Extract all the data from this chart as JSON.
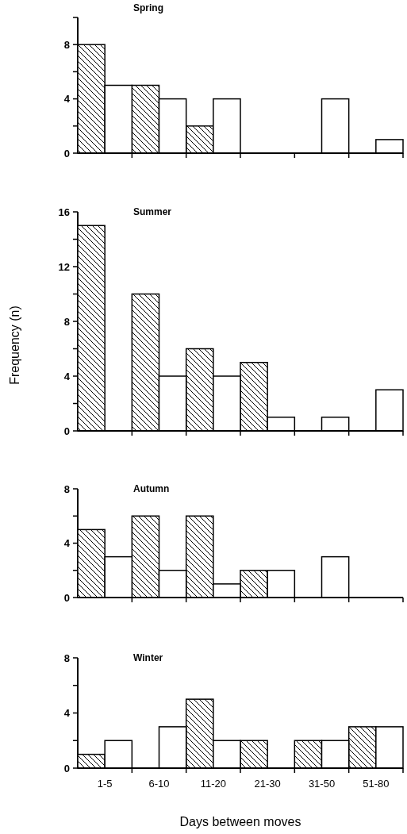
{
  "chart_data": [
    {
      "type": "bar",
      "title": "Spring",
      "categories": [
        null,
        null,
        null,
        null,
        null,
        null
      ],
      "series": [
        {
          "color": "#000000",
          "values": [
            8,
            5,
            2,
            0,
            0,
            0
          ]
        },
        {
          "color": "#ffffff",
          "values": [
            5,
            4,
            4,
            0,
            4,
            1
          ]
        }
      ],
      "ylim": [
        0,
        10
      ],
      "yticks": [
        0,
        {
          "value": 2,
          "label": null
        },
        4,
        {
          "value": 6,
          "label": null
        },
        8,
        {
          "value": 10,
          "label": null
        }
      ]
    },
    {
      "type": "bar",
      "title": "Summer",
      "ylabel": "Frequency (n)",
      "categories": [
        null,
        null,
        null,
        null,
        null,
        null
      ],
      "series": [
        {
          "color": "#000000",
          "values": [
            15,
            10,
            6,
            5,
            0,
            0
          ]
        },
        {
          "color": "#ffffff",
          "values": [
            0,
            4,
            4,
            1,
            1,
            3
          ]
        }
      ],
      "ylim": [
        0,
        16
      ],
      "yticks": [
        0,
        {
          "value": 2,
          "label": null
        },
        4,
        {
          "value": 6,
          "label": null
        },
        8,
        {
          "value": 10,
          "label": null
        },
        12,
        {
          "value": 14,
          "label": null
        },
        16
      ]
    },
    {
      "type": "bar",
      "title": "Autumn",
      "categories": [
        null,
        null,
        null,
        null,
        null,
        null
      ],
      "series": [
        {
          "color": "#000000",
          "values": [
            5,
            6,
            6,
            2,
            0,
            0
          ]
        },
        {
          "color": "#ffffff",
          "values": [
            3,
            2,
            1,
            2,
            3,
            0
          ]
        }
      ],
      "ylim": [
        0,
        8
      ],
      "yticks": [
        0,
        {
          "value": 2,
          "label": null
        },
        4,
        {
          "value": 6,
          "label": null
        },
        8
      ]
    },
    {
      "type": "bar",
      "title": "Winter",
      "xlabel": "Days between moves",
      "categories": [
        "1-5",
        "6-10",
        "11-20",
        "21-30",
        "31-50",
        "51-80"
      ],
      "series": [
        {
          "color": "#000000",
          "values": [
            1,
            0,
            5,
            2,
            2,
            3
          ]
        },
        {
          "color": "#ffffff",
          "values": [
            2,
            3,
            2,
            0,
            2,
            3
          ]
        }
      ],
      "ylim": [
        0,
        8
      ],
      "yticks": [
        0,
        {
          "value": 2,
          "label": null
        },
        4,
        {
          "value": 6,
          "label": null
        },
        8
      ]
    }
  ]
}
